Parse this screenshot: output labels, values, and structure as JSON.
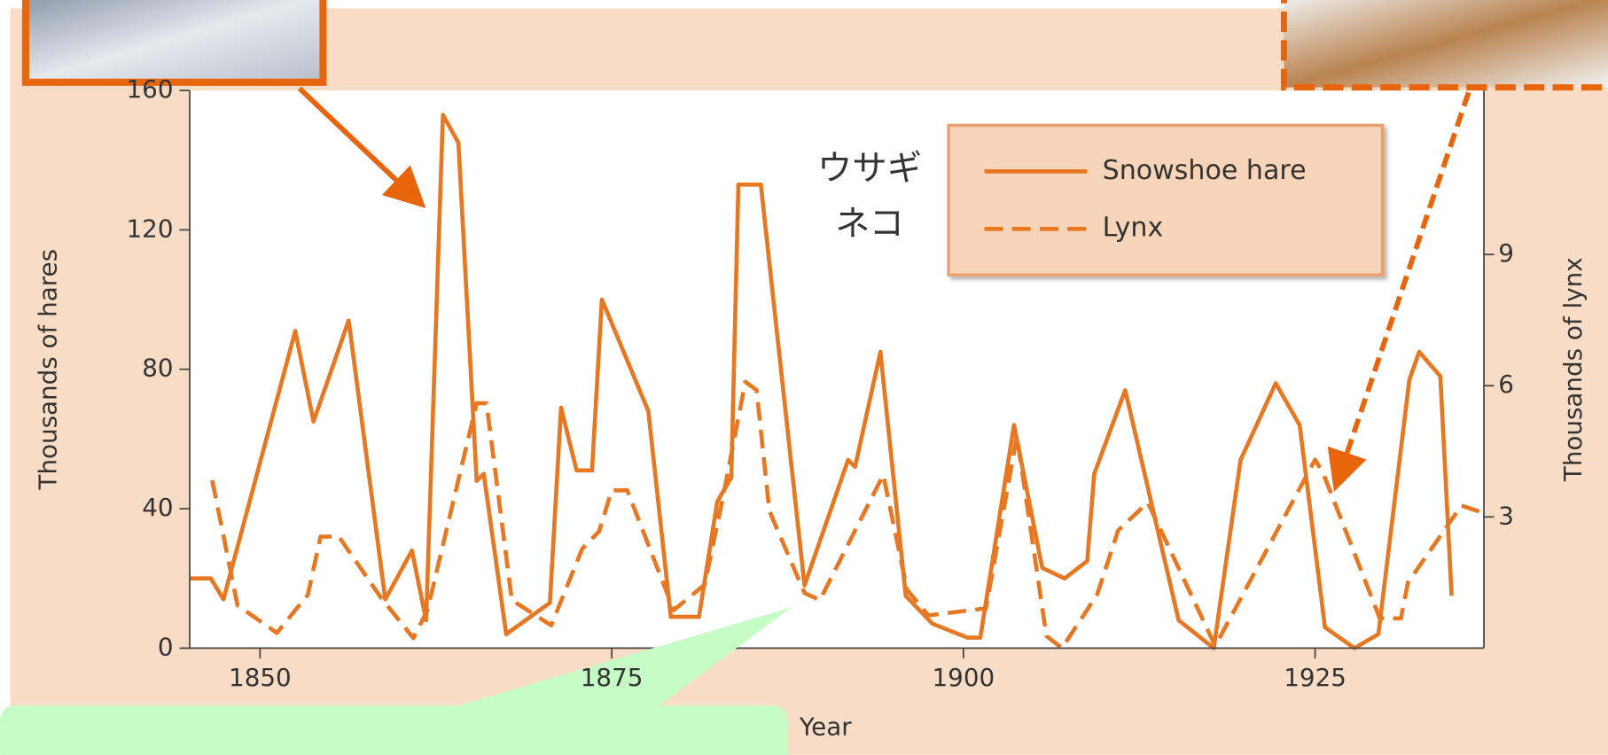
{
  "chart_data": {
    "type": "line",
    "xlabel": "Year",
    "ylabel": "Thousands of hares",
    "y2label": "Thousands of lynx",
    "annotations": [
      "ウサギ",
      "ネコ"
    ],
    "xlim": [
      1845,
      1937
    ],
    "xticks": [
      1850,
      1875,
      1900,
      1925
    ],
    "ylim": [
      0,
      160
    ],
    "yticks": [
      0,
      40,
      80,
      120,
      160
    ],
    "y2lim": [
      0,
      12.75
    ],
    "y2ticks": [
      3,
      6,
      9
    ],
    "series": [
      {
        "name": "Snowshoe hare",
        "color": "#e87722",
        "line_style": "solid",
        "x": [
          1845,
          1846.5,
          1847.4,
          1852.5,
          1853.8,
          1856.3,
          1858.9,
          1860.8,
          1861.8,
          1863,
          1864.1,
          1865.4,
          1865.9,
          1867.5,
          1870.6,
          1871.4,
          1872.5,
          1873.6,
          1874.3,
          1877.6,
          1879.2,
          1881.2,
          1882.5,
          1883.5,
          1884,
          1885.6,
          1888.7,
          1891.8,
          1892.3,
          1894.1,
          1895.9,
          1897.8,
          1900.3,
          1901.2,
          1903.6,
          1905.6,
          1907.2,
          1908.8,
          1909.3,
          1911.5,
          1915.3,
          1917.8,
          1919.7,
          1922.2,
          1923.9,
          1925.7,
          1927.8,
          1929.5,
          1931.7,
          1932.4,
          1933.9,
          1934.7
        ],
        "values": [
          20,
          20,
          14,
          91,
          65,
          94,
          14,
          28,
          8,
          153,
          145,
          48,
          50,
          4,
          13,
          69,
          51,
          51,
          100,
          68,
          9,
          9,
          42,
          49,
          133,
          133,
          18,
          54,
          52,
          85,
          15,
          7,
          3,
          3,
          64,
          23,
          20,
          25,
          50,
          74,
          8,
          0,
          54,
          76,
          64,
          6,
          0,
          4,
          77,
          85,
          78,
          15
        ]
      },
      {
        "name": "Lynx",
        "color": "#e87722",
        "line_style": "dashed",
        "axis": "y2",
        "x": [
          1846.6,
          1848.4,
          1851.2,
          1853.4,
          1854.3,
          1855.6,
          1858.6,
          1860.9,
          1861.9,
          1865.4,
          1866.1,
          1867.9,
          1870.7,
          1872.9,
          1874.1,
          1875,
          1876.1,
          1879.4,
          1881.6,
          1882.9,
          1884.5,
          1885.3,
          1886.2,
          1888.7,
          1889.8,
          1894.3,
          1896,
          1897.5,
          1901.6,
          1903.8,
          1905.9,
          1907,
          1909.5,
          1911,
          1913.1,
          1917.9,
          1925,
          1925.6,
          1929.6,
          1931.1,
          1931.6,
          1935.4,
          1937
        ],
        "values": [
          3.84,
          0.98,
          0.35,
          1.22,
          2.55,
          2.55,
          1.15,
          0.23,
          0.87,
          5.6,
          5.6,
          1.1,
          0.52,
          2.27,
          2.67,
          3.61,
          3.61,
          0.87,
          1.45,
          3.44,
          6.09,
          5.9,
          3.14,
          1.26,
          1.1,
          3.96,
          1.33,
          0.75,
          0.91,
          4.85,
          0.28,
          0,
          1.22,
          2.69,
          3.33,
          0.05,
          4.31,
          3.98,
          0.68,
          0.68,
          1.5,
          3.26,
          3.09
        ]
      }
    ]
  }
}
